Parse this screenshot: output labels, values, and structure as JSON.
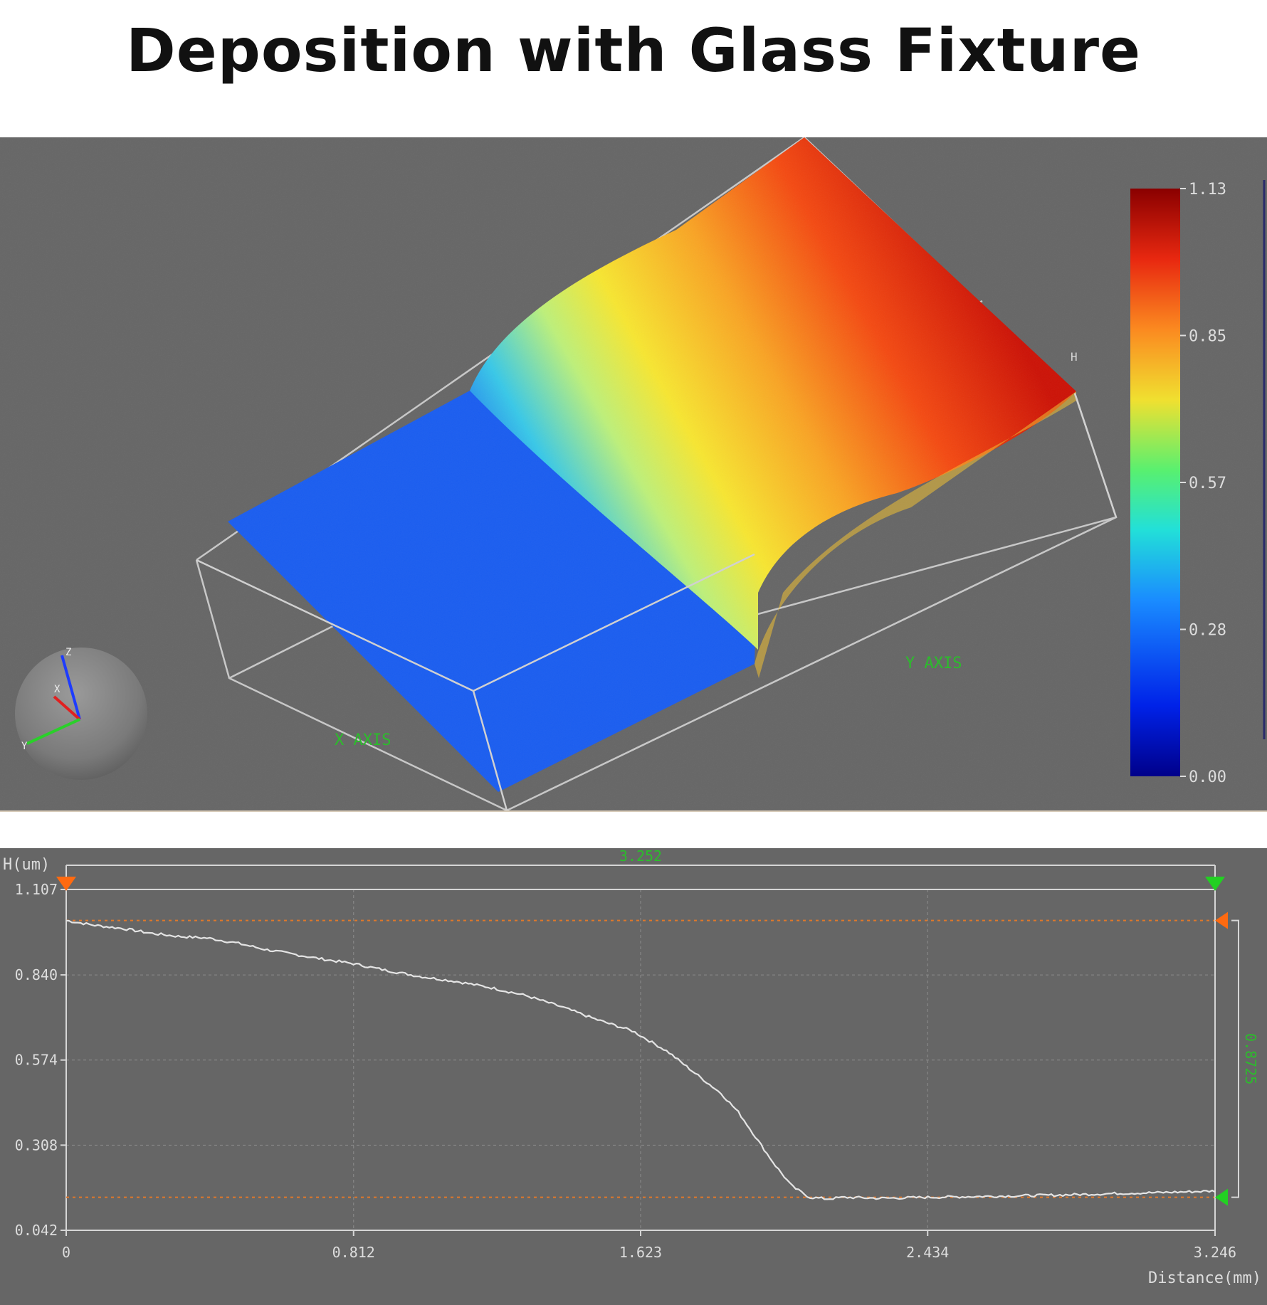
{
  "title": "Deposition with Glass Fixture",
  "surface_view": {
    "colorbar_ticks": [
      "1.13",
      "0.85",
      "0.57",
      "0.28",
      "0.00"
    ],
    "axis_labels": {
      "x": "X AXIS",
      "y": "Y AXIS",
      "h": "H"
    },
    "gizmo_labels": {
      "z": "Z",
      "x": "X",
      "y": "Y"
    },
    "colors": {
      "background": "#666666",
      "low": "#1560ee",
      "mid": "#f4e12c",
      "high": "#d81a08",
      "axis_text": "#2bbd2b"
    }
  },
  "chart_data": {
    "type": "line",
    "ylabel": "H(um)",
    "xlabel": "Distance(mm)",
    "xlim": [
      0,
      3.246
    ],
    "ylim": [
      0.042,
      1.107
    ],
    "x_ticks": [
      "0",
      "0.812",
      "1.623",
      "2.434",
      "3.246"
    ],
    "y_ticks": [
      "1.107",
      "0.840",
      "0.574",
      "0.308",
      "0.042"
    ],
    "x_tick_values": [
      0,
      0.812,
      1.623,
      2.434,
      3.246
    ],
    "y_tick_values": [
      1.107,
      0.84,
      0.574,
      0.308,
      0.042
    ],
    "width_measure": "3.252",
    "height_measure": "0.8725",
    "reference_levels": [
      1.01,
      0.145
    ],
    "grid": true,
    "series": [
      {
        "x": [
          0,
          0.08,
          0.16,
          0.24,
          0.32,
          0.4,
          0.48,
          0.56,
          0.64,
          0.72,
          0.812,
          0.9,
          1.0,
          1.1,
          1.2,
          1.3,
          1.4,
          1.5,
          1.6,
          1.7,
          1.78,
          1.85,
          1.9,
          1.95,
          2.0,
          2.05,
          2.1,
          2.15,
          2.2,
          2.3,
          2.434,
          2.6,
          2.8,
          3.0,
          3.1,
          3.246
        ],
        "y": [
          1.01,
          0.995,
          0.985,
          0.97,
          0.96,
          0.955,
          0.94,
          0.92,
          0.905,
          0.89,
          0.875,
          0.855,
          0.835,
          0.82,
          0.8,
          0.775,
          0.74,
          0.7,
          0.665,
          0.6,
          0.53,
          0.47,
          0.41,
          0.33,
          0.25,
          0.18,
          0.145,
          0.14,
          0.145,
          0.142,
          0.145,
          0.148,
          0.152,
          0.158,
          0.16,
          0.165
        ]
      }
    ]
  }
}
